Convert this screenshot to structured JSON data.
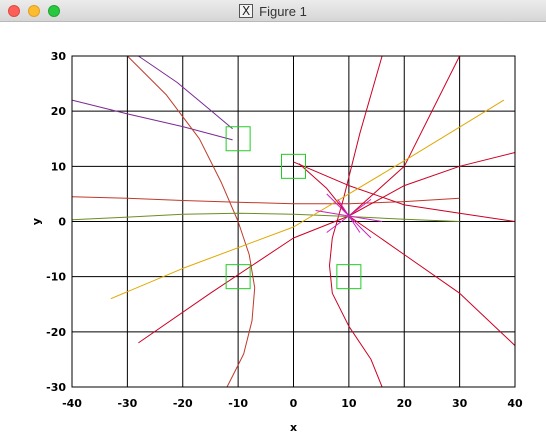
{
  "window": {
    "title": "Figure 1",
    "logo_glyph": "X",
    "controls": {
      "close": "close",
      "minimize": "minimize",
      "maximize": "maximize"
    }
  },
  "chart_data": {
    "type": "line",
    "xlabel": "x",
    "ylabel": "y",
    "xlim": [
      -40,
      40
    ],
    "ylim": [
      -30,
      30
    ],
    "xticks": [
      -40,
      -30,
      -20,
      -10,
      0,
      10,
      20,
      30,
      40
    ],
    "yticks": [
      -30,
      -20,
      -10,
      0,
      10,
      20,
      30
    ],
    "grid": true,
    "colors": {
      "purple": "#7b2a96",
      "darkred": "#c0392b",
      "red": "#cc0022",
      "olive": "#6b8e23",
      "gold": "#e0a800",
      "magenta": "#d020c0",
      "green": "#22cc22"
    },
    "series": [
      {
        "color": "purple",
        "points": [
          [
            -40,
            22
          ],
          [
            -30,
            19.5
          ],
          [
            -20,
            17.2
          ],
          [
            -11,
            14.8
          ]
        ]
      },
      {
        "color": "purple",
        "points": [
          [
            -28,
            30
          ],
          [
            -21,
            25.2
          ],
          [
            -15,
            20.2
          ],
          [
            -11,
            16.8
          ]
        ]
      },
      {
        "color": "darkred",
        "points": [
          [
            -30,
            30
          ],
          [
            -23,
            23
          ],
          [
            -17,
            15
          ],
          [
            -13,
            7
          ],
          [
            -10,
            0
          ],
          [
            -8,
            -6
          ],
          [
            -7,
            -12
          ],
          [
            -7.5,
            -18
          ],
          [
            -9,
            -24
          ],
          [
            -11,
            -28
          ],
          [
            -12,
            -30
          ]
        ]
      },
      {
        "color": "darkred",
        "points": [
          [
            -40,
            4.5
          ],
          [
            -30,
            4.2
          ],
          [
            -20,
            3.8
          ],
          [
            -10,
            3.5
          ],
          [
            0,
            3.2
          ],
          [
            10,
            3.2
          ],
          [
            20,
            3.6
          ],
          [
            30,
            4.2
          ]
        ]
      },
      {
        "color": "red",
        "points": [
          [
            1,
            10.5
          ],
          [
            6,
            6
          ],
          [
            10,
            1
          ]
        ]
      },
      {
        "color": "red",
        "points": [
          [
            10,
            1
          ],
          [
            20,
            6.5
          ],
          [
            30,
            10
          ],
          [
            40,
            12.5
          ]
        ]
      },
      {
        "color": "red",
        "points": [
          [
            -28,
            -22
          ],
          [
            -15,
            -13
          ],
          [
            0,
            -3
          ],
          [
            10,
            1
          ],
          [
            20,
            10
          ],
          [
            30,
            30
          ]
        ]
      },
      {
        "color": "red",
        "points": [
          [
            10,
            1
          ],
          [
            20,
            -6
          ],
          [
            30,
            -13
          ],
          [
            40,
            -22.5
          ]
        ]
      },
      {
        "color": "red",
        "points": [
          [
            0,
            10.8
          ],
          [
            10,
            6.5
          ],
          [
            20,
            3
          ],
          [
            30,
            1.5
          ],
          [
            40,
            0
          ]
        ]
      },
      {
        "color": "red",
        "points": [
          [
            16,
            30
          ],
          [
            12,
            16
          ],
          [
            9,
            4
          ],
          [
            7,
            -3
          ],
          [
            6.5,
            -8
          ],
          [
            7,
            -13
          ],
          [
            10,
            -19
          ],
          [
            14,
            -25
          ],
          [
            16,
            -30
          ]
        ]
      },
      {
        "color": "olive",
        "points": [
          [
            -40,
            0.3
          ],
          [
            -30,
            0.8
          ],
          [
            -20,
            1.3
          ],
          [
            -10,
            1.5
          ],
          [
            0,
            1.3
          ],
          [
            10,
            0.9
          ],
          [
            20,
            0.4
          ],
          [
            30,
            0
          ]
        ]
      },
      {
        "color": "gold",
        "points": [
          [
            -33,
            -14
          ],
          [
            -20,
            -8.5
          ],
          [
            0,
            -1
          ],
          [
            20,
            11
          ],
          [
            38,
            22
          ]
        ]
      },
      {
        "color": "magenta",
        "points": [
          [
            6,
            5
          ],
          [
            14,
            -3
          ]
        ]
      },
      {
        "color": "magenta",
        "points": [
          [
            6,
            -2
          ],
          [
            14,
            4
          ]
        ]
      },
      {
        "color": "magenta",
        "points": [
          [
            4,
            2
          ],
          [
            16,
            0
          ]
        ]
      },
      {
        "color": "magenta",
        "points": [
          [
            8,
            4
          ],
          [
            12,
            -2
          ]
        ]
      }
    ],
    "markers": {
      "type": "square",
      "color": "green",
      "points": [
        [
          -10,
          15
        ],
        [
          0,
          10
        ],
        [
          -10,
          -10
        ],
        [
          10,
          -10
        ]
      ]
    }
  }
}
